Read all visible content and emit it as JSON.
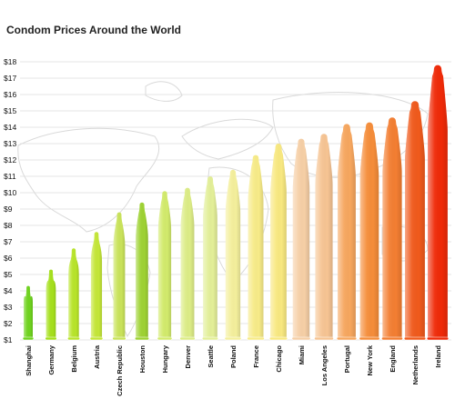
{
  "chart_data": {
    "type": "bar",
    "title": "Condom Prices Around the World",
    "xlabel": "",
    "ylabel": "",
    "ylim": [
      1,
      18
    ],
    "yticks": [
      "$1",
      "$2",
      "$3",
      "$4",
      "$5",
      "$6",
      "$7",
      "$8",
      "$9",
      "$10",
      "$11",
      "$12",
      "$13",
      "$14",
      "$15",
      "$16",
      "$17",
      "$18"
    ],
    "grid": true,
    "categories": [
      "Shanghai",
      "Germany",
      "Belgium",
      "Austria",
      "Czech Republic",
      "Houston",
      "Hungary",
      "Denver",
      "Seattle",
      "Poland",
      "France",
      "Chicago",
      "Miami",
      "Los Angeles",
      "Portugal",
      "New York",
      "England",
      "Netherlands",
      "Ireland"
    ],
    "values": [
      4.3,
      5.3,
      6.6,
      7.6,
      8.8,
      9.4,
      10.1,
      10.3,
      11.0,
      11.4,
      12.3,
      13.0,
      13.3,
      13.6,
      14.2,
      14.3,
      14.6,
      15.6,
      17.8
    ],
    "colors": [
      "#6fd31e",
      "#a5e01c",
      "#b8e42a",
      "#c4e638",
      "#c9e35a",
      "#9ed233",
      "#d2ea6c",
      "#dcec86",
      "#e3ef98",
      "#f4ef9c",
      "#f7eb88",
      "#f8e880",
      "#f6cfa6",
      "#f6c493",
      "#f6a65e",
      "#f58d3a",
      "#f37e32",
      "#f05a1c",
      "#ef2a08"
    ]
  }
}
